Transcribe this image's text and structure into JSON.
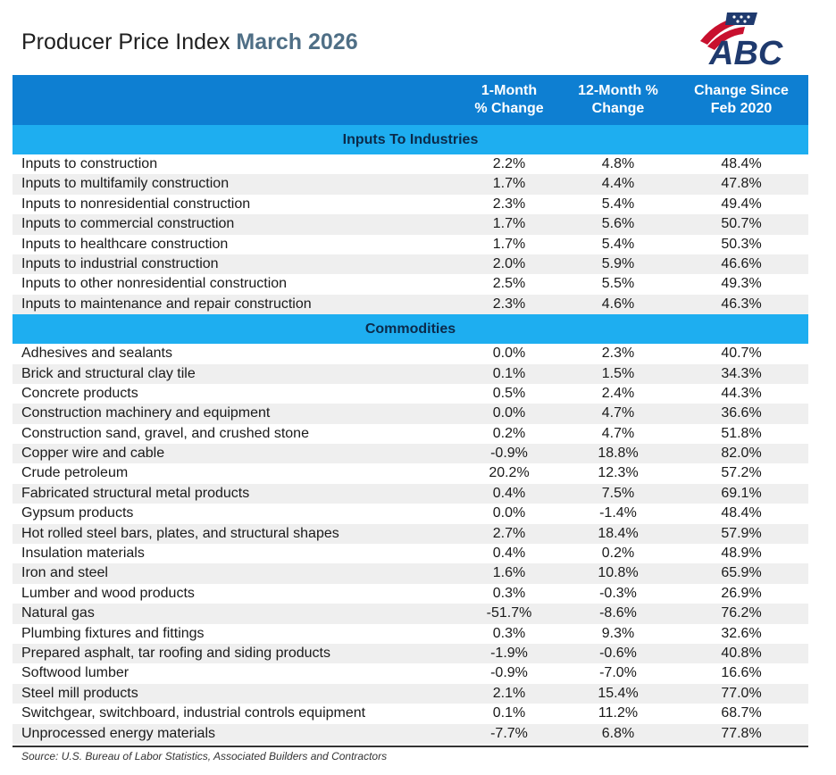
{
  "title": {
    "main": "Producer Price Index",
    "accent": "March 2026"
  },
  "logo": {
    "text": "ABC"
  },
  "chart_data": {
    "type": "table",
    "columns": [
      "",
      "1-Month\n% Change",
      "12-Month %\nChange",
      "Change Since\nFeb 2020"
    ],
    "sections": [
      {
        "name": "Inputs To Industries",
        "rows": [
          {
            "label": "Inputs to construction",
            "m1": "2.2%",
            "m12": "4.8%",
            "since": "48.4%"
          },
          {
            "label": "Inputs to multifamily construction",
            "m1": "1.7%",
            "m12": "4.4%",
            "since": "47.8%"
          },
          {
            "label": "Inputs to nonresidential construction",
            "m1": "2.3%",
            "m12": "5.4%",
            "since": "49.4%"
          },
          {
            "label": "Inputs to commercial construction",
            "m1": "1.7%",
            "m12": "5.6%",
            "since": "50.7%"
          },
          {
            "label": "Inputs to healthcare construction",
            "m1": "1.7%",
            "m12": "5.4%",
            "since": "50.3%"
          },
          {
            "label": "Inputs to industrial construction",
            "m1": "2.0%",
            "m12": "5.9%",
            "since": "46.6%"
          },
          {
            "label": "Inputs to other nonresidential construction",
            "m1": "2.5%",
            "m12": "5.5%",
            "since": "49.3%"
          },
          {
            "label": "Inputs to maintenance and repair construction",
            "m1": "2.3%",
            "m12": "4.6%",
            "since": "46.3%"
          }
        ]
      },
      {
        "name": "Commodities",
        "rows": [
          {
            "label": "Adhesives and sealants",
            "m1": "0.0%",
            "m12": "2.3%",
            "since": "40.7%"
          },
          {
            "label": "Brick and structural clay tile",
            "m1": "0.1%",
            "m12": "1.5%",
            "since": "34.3%"
          },
          {
            "label": "Concrete products",
            "m1": "0.5%",
            "m12": "2.4%",
            "since": "44.3%"
          },
          {
            "label": "Construction machinery and equipment",
            "m1": "0.0%",
            "m12": "4.7%",
            "since": "36.6%"
          },
          {
            "label": "Construction sand, gravel, and crushed stone",
            "m1": "0.2%",
            "m12": "4.7%",
            "since": "51.8%"
          },
          {
            "label": "Copper wire and cable",
            "m1": "-0.9%",
            "m12": "18.8%",
            "since": "82.0%"
          },
          {
            "label": "Crude petroleum",
            "m1": "20.2%",
            "m12": "12.3%",
            "since": "57.2%"
          },
          {
            "label": "Fabricated structural metal products",
            "m1": "0.4%",
            "m12": "7.5%",
            "since": "69.1%"
          },
          {
            "label": "Gypsum products",
            "m1": "0.0%",
            "m12": "-1.4%",
            "since": "48.4%"
          },
          {
            "label": "Hot rolled steel bars, plates, and structural shapes",
            "m1": "2.7%",
            "m12": "18.4%",
            "since": "57.9%"
          },
          {
            "label": "Insulation materials",
            "m1": "0.4%",
            "m12": "0.2%",
            "since": "48.9%"
          },
          {
            "label": "Iron and steel",
            "m1": "1.6%",
            "m12": "10.8%",
            "since": "65.9%"
          },
          {
            "label": "Lumber and wood products",
            "m1": "0.3%",
            "m12": "-0.3%",
            "since": "26.9%"
          },
          {
            "label": "Natural gas",
            "m1": "-51.7%",
            "m12": "-8.6%",
            "since": "76.2%"
          },
          {
            "label": "Plumbing fixtures and fittings",
            "m1": "0.3%",
            "m12": "9.3%",
            "since": "32.6%"
          },
          {
            "label": "Prepared asphalt, tar roofing and siding products",
            "m1": "-1.9%",
            "m12": "-0.6%",
            "since": "40.8%"
          },
          {
            "label": "Softwood lumber",
            "m1": "-0.9%",
            "m12": "-7.0%",
            "since": "16.6%"
          },
          {
            "label": "Steel mill products",
            "m1": "2.1%",
            "m12": "15.4%",
            "since": "77.0%"
          },
          {
            "label": "Switchgear, switchboard, industrial controls equipment",
            "m1": "0.1%",
            "m12": "11.2%",
            "since": "68.7%"
          },
          {
            "label": "Unprocessed energy materials",
            "m1": "-7.7%",
            "m12": "6.8%",
            "since": "77.8%"
          }
        ]
      }
    ]
  },
  "source": "Source: U.S. Bureau of Labor Statistics, Associated Builders and Contractors"
}
